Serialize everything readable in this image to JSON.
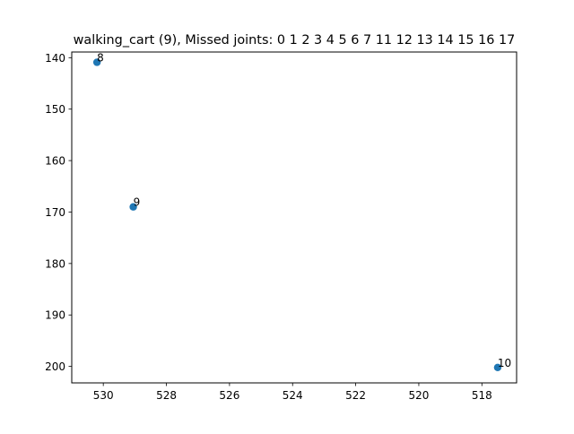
{
  "chart_data": {
    "type": "scatter",
    "title": "walking_cart (9), Missed joints: 0 1 2 3 4 5 6 7 11 12 13 14 15 16 17",
    "xlabel": "",
    "ylabel": "",
    "xlim": [
      531.0,
      516.9
    ],
    "ylim": [
      203.2,
      138.9
    ],
    "x_ticks": [
      530,
      528,
      526,
      524,
      522,
      520,
      518
    ],
    "y_ticks": [
      140,
      150,
      160,
      170,
      180,
      190,
      200
    ],
    "grid": false,
    "points": [
      {
        "label": "8",
        "x": 530.2,
        "y": 140.9
      },
      {
        "label": "9",
        "x": 529.05,
        "y": 169.0
      },
      {
        "label": "10",
        "x": 517.5,
        "y": 200.2
      }
    ],
    "marker_color": "#1f77b4"
  }
}
